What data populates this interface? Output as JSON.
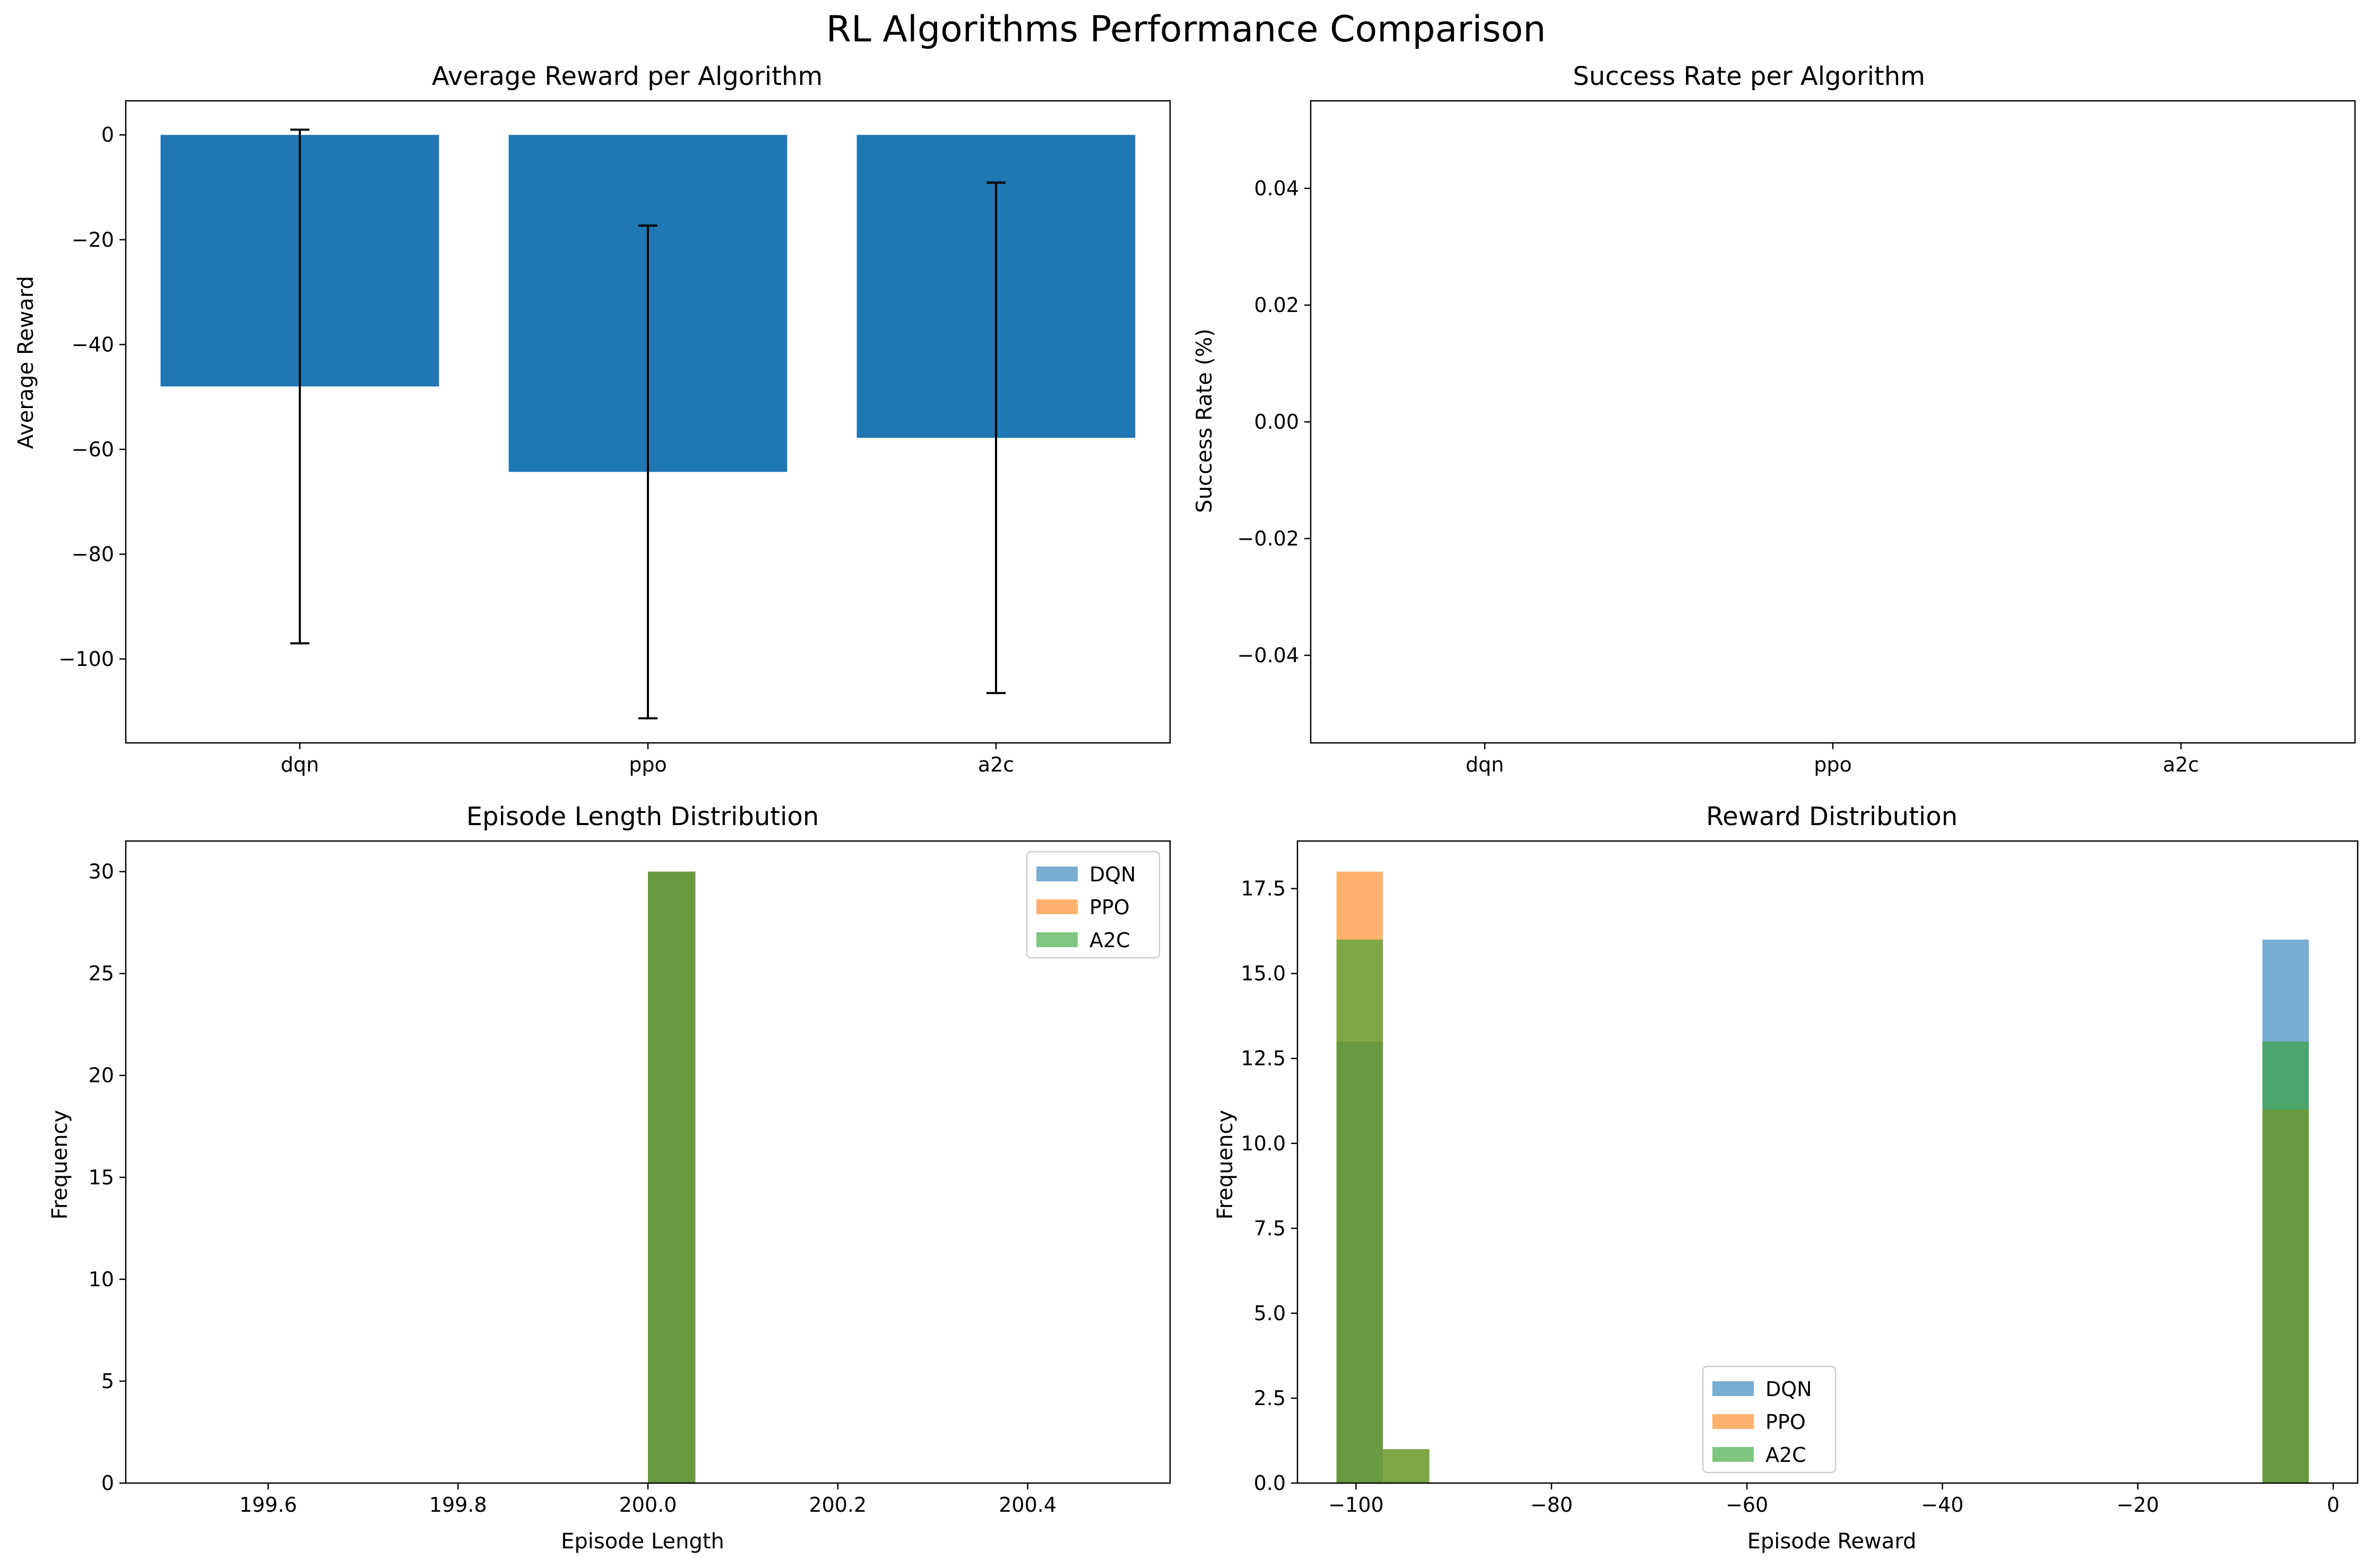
{
  "figure": {
    "title": "RL Algorithms Performance Comparison"
  },
  "chart_data": [
    {
      "id": "avg_reward",
      "type": "bar",
      "title": "Average Reward per Algorithm",
      "xlabel": "",
      "ylabel": "Average Reward",
      "categories": [
        "dqn",
        "ppo",
        "a2c"
      ],
      "values": [
        -48,
        -64.3,
        -57.8
      ],
      "error": [
        49,
        47,
        48.7
      ],
      "ylim": [
        -116,
        6.5
      ],
      "yticks": [
        0,
        -20,
        -40,
        -60,
        -80,
        -100
      ],
      "color": "#1f77b4",
      "grid": false
    },
    {
      "id": "success_rate",
      "type": "bar",
      "title": "Success Rate per Algorithm",
      "xlabel": "",
      "ylabel": "Success Rate (%)",
      "categories": [
        "dqn",
        "ppo",
        "a2c"
      ],
      "values": [
        0,
        0,
        0
      ],
      "ylim": [
        -0.055,
        0.055
      ],
      "yticks": [
        0.04,
        0.02,
        0.0,
        -0.02,
        -0.04
      ],
      "ytick_labels": [
        "0.04",
        "0.02",
        "0.00",
        "−0.02",
        "−0.04"
      ],
      "grid": false
    },
    {
      "id": "episode_length",
      "type": "bar",
      "title": "Episode Length Distribution",
      "xlabel": "Episode Length",
      "ylabel": "Frequency",
      "xlim": [
        199.45,
        200.55
      ],
      "ylim": [
        0,
        31.5
      ],
      "xticks": [
        199.6,
        199.8,
        200.0,
        200.2,
        200.4
      ],
      "yticks": [
        0,
        5,
        10,
        15,
        20,
        25,
        30
      ],
      "bin_width": 0.05,
      "series": [
        {
          "name": "DQN",
          "color": "#1f77b4",
          "bins": [
            [
              200.0,
              30
            ]
          ]
        },
        {
          "name": "PPO",
          "color": "#ff7f0e",
          "bins": [
            [
              200.0,
              30
            ]
          ]
        },
        {
          "name": "A2C",
          "color": "#2ca02c",
          "bins": [
            [
              200.0,
              30
            ]
          ]
        }
      ],
      "legend": "top-right",
      "grid": false
    },
    {
      "id": "reward_dist",
      "type": "bar",
      "title": "Reward Distribution",
      "xlabel": "Episode Reward",
      "ylabel": "Frequency",
      "xlim": [
        -106,
        2.5
      ],
      "ylim": [
        0,
        18.9
      ],
      "xticks": [
        -100,
        -80,
        -60,
        -40,
        -20,
        0
      ],
      "yticks": [
        0.0,
        2.5,
        5.0,
        7.5,
        10.0,
        12.5,
        15.0,
        17.5
      ],
      "bin_width": 4.75,
      "series": [
        {
          "name": "DQN",
          "color": "#1f77b4",
          "bins": [
            [
              -102,
              13
            ],
            [
              -7.25,
              16
            ]
          ]
        },
        {
          "name": "PPO",
          "color": "#ff7f0e",
          "bins": [
            [
              -102,
              18
            ],
            [
              -97.25,
              1
            ],
            [
              -7.25,
              11
            ]
          ]
        },
        {
          "name": "A2C",
          "color": "#2ca02c",
          "bins": [
            [
              -102,
              16
            ],
            [
              -97.25,
              1
            ],
            [
              -7.25,
              13
            ]
          ]
        }
      ],
      "legend": "lower-center",
      "grid": false
    }
  ]
}
